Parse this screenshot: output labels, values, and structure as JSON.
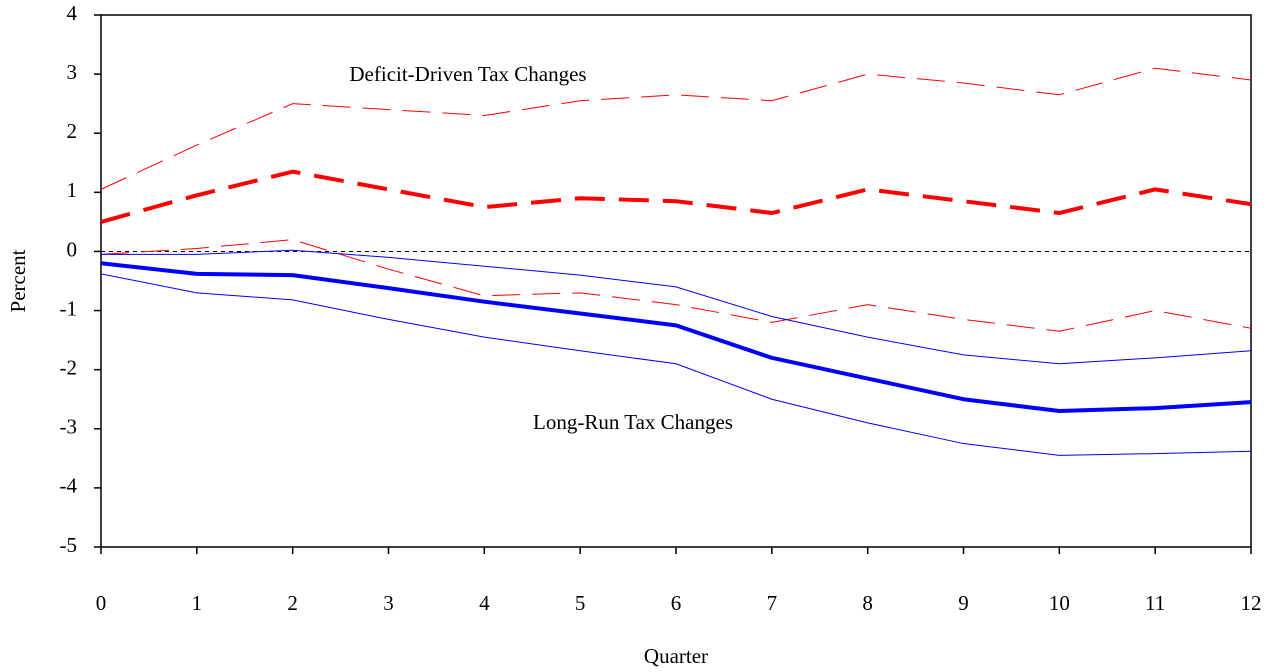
{
  "chart_data": {
    "type": "line",
    "xlabel": "Quarter",
    "ylabel": "Percent",
    "annotations": [
      "Deficit-Driven Tax Changes",
      "Long-Run Tax Changes"
    ],
    "x": [
      0,
      1,
      2,
      3,
      4,
      5,
      6,
      7,
      8,
      9,
      10,
      11,
      12
    ],
    "series": [
      {
        "color": "#ff0000",
        "style": "dashed",
        "width": 4,
        "values": [
          0.5,
          0.95,
          1.35,
          1.05,
          0.75,
          0.9,
          0.85,
          0.65,
          1.05,
          0.85,
          0.65,
          1.05,
          0.8
        ]
      },
      {
        "color": "#ff0000",
        "style": "dashed",
        "width": 1,
        "values": [
          1.05,
          1.8,
          2.5,
          2.4,
          2.3,
          2.55,
          2.65,
          2.55,
          3.0,
          2.85,
          2.65,
          3.1,
          2.9
        ]
      },
      {
        "color": "#ff0000",
        "style": "dashed",
        "width": 1,
        "values": [
          -0.05,
          0.05,
          0.2,
          -0.3,
          -0.75,
          -0.7,
          -0.9,
          -1.2,
          -0.9,
          -1.15,
          -1.35,
          -1.0,
          -1.3
        ]
      },
      {
        "color": "#0000ff",
        "style": "solid",
        "width": 4,
        "values": [
          -0.2,
          -0.38,
          -0.4,
          -0.62,
          -0.85,
          -1.05,
          -1.25,
          -1.8,
          -2.15,
          -2.5,
          -2.7,
          -2.65,
          -2.55
        ]
      },
      {
        "color": "#0000ff",
        "style": "solid",
        "width": 1,
        "values": [
          -0.05,
          -0.05,
          0.02,
          -0.1,
          -0.25,
          -0.4,
          -0.6,
          -1.1,
          -1.45,
          -1.75,
          -1.9,
          -1.8,
          -1.68
        ]
      },
      {
        "color": "#0000ff",
        "style": "solid",
        "width": 1,
        "values": [
          -0.38,
          -0.7,
          -0.82,
          -1.15,
          -1.45,
          -1.68,
          -1.9,
          -2.5,
          -2.9,
          -3.25,
          -3.45,
          -3.42,
          -3.38
        ]
      }
    ],
    "xlim": [
      0,
      12
    ],
    "xticks": [
      0,
      1,
      2,
      3,
      4,
      5,
      6,
      7,
      8,
      9,
      10,
      11,
      12
    ],
    "ylim": [
      -5,
      4
    ],
    "yticks": [
      -5,
      -4,
      -3,
      -2,
      -1,
      0,
      1,
      2,
      3,
      4
    ],
    "zero_line": true
  }
}
